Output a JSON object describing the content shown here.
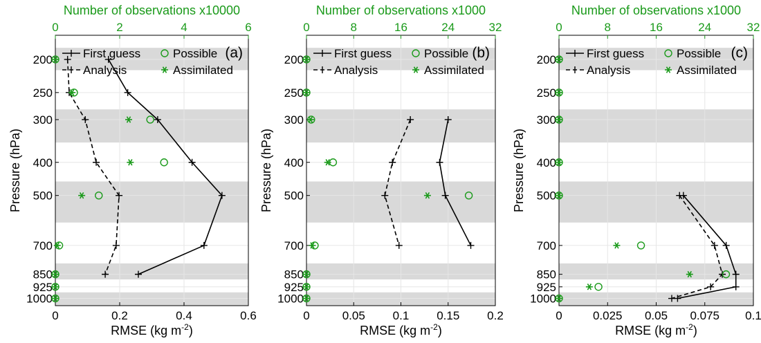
{
  "chart_data": [
    {
      "type": "line",
      "panel_label": "(a)",
      "xlabel": "RMSE (kg m",
      "xlabel_sup": "-2",
      "xlabel_close": ")",
      "ylabel": "Pressure (hPa)",
      "x2label": "Number of observations x10000",
      "xlim": [
        0,
        0.6
      ],
      "x2lim": [
        0,
        6
      ],
      "yscale": "log",
      "ylim_top": 170,
      "ylim_bottom": 1050,
      "xticks": [
        "0",
        "0.2",
        "0.4",
        "0.6"
      ],
      "xtick_values": [
        0,
        0.2,
        0.4,
        0.6
      ],
      "x2ticks": [
        "0",
        "2",
        "4",
        "6"
      ],
      "x2tick_values": [
        0,
        2,
        4,
        6
      ],
      "yticks": [
        "200",
        "250",
        "300",
        "400",
        "500",
        "700",
        "850",
        "925",
        "1000"
      ],
      "ytick_values": [
        200,
        250,
        300,
        400,
        500,
        700,
        850,
        925,
        1000
      ],
      "grid": true,
      "pressure": [
        200,
        250,
        300,
        400,
        500,
        700,
        850
      ],
      "series": [
        {
          "name": "First guess",
          "style": "solid",
          "axis": "bottom",
          "values": [
            0.165,
            0.225,
            0.318,
            0.425,
            0.518,
            0.462,
            0.258
          ]
        },
        {
          "name": "Analysis",
          "style": "dashed",
          "axis": "bottom",
          "values": [
            0.038,
            0.043,
            0.093,
            0.127,
            0.198,
            0.189,
            0.155
          ]
        }
      ],
      "observations": {
        "pressure": [
          200,
          250,
          300,
          400,
          500,
          700,
          850,
          925,
          1000
        ],
        "possible": [
          0.0,
          0.58,
          2.95,
          3.38,
          1.35,
          0.12,
          0.0,
          0.0,
          0.0
        ],
        "assimilated": [
          0.0,
          0.52,
          2.28,
          2.33,
          0.82,
          0.06,
          0.0,
          0.0,
          0.0
        ]
      },
      "legend": [
        "First guess",
        "Possible",
        "Analysis",
        "Assimilated"
      ]
    },
    {
      "type": "line",
      "panel_label": "(b)",
      "xlabel": "RMSE (kg m",
      "xlabel_sup": "-2",
      "xlabel_close": ")",
      "ylabel": "Pressure (hPa)",
      "x2label": "Number of observations x1000",
      "xlim": [
        0,
        0.2
      ],
      "x2lim": [
        0,
        32
      ],
      "yscale": "log",
      "ylim_top": 170,
      "ylim_bottom": 1050,
      "xticks": [
        "0",
        "0.05",
        "0.1",
        "0.15",
        "0.2"
      ],
      "xtick_values": [
        0,
        0.05,
        0.1,
        0.15,
        0.2
      ],
      "x2ticks": [
        "0",
        "8",
        "16",
        "24",
        "32"
      ],
      "x2tick_values": [
        0,
        8,
        16,
        24,
        32
      ],
      "yticks": [
        "200",
        "250",
        "300",
        "400",
        "500",
        "700",
        "850",
        "925",
        "1000"
      ],
      "ytick_values": [
        200,
        250,
        300,
        400,
        500,
        700,
        850,
        925,
        1000
      ],
      "grid": true,
      "pressure": [
        300,
        400,
        500,
        700
      ],
      "series": [
        {
          "name": "First guess",
          "style": "solid",
          "axis": "bottom",
          "values": [
            0.15,
            0.141,
            0.147,
            0.174
          ]
        },
        {
          "name": "Analysis",
          "style": "dashed",
          "axis": "bottom",
          "values": [
            0.11,
            0.091,
            0.083,
            0.098
          ]
        }
      ],
      "observations": {
        "pressure": [
          200,
          250,
          300,
          400,
          500,
          700,
          850,
          925,
          1000
        ],
        "possible": [
          0.0,
          0.0,
          0.8,
          4.5,
          27.5,
          1.4,
          0.0,
          0.0,
          0.0
        ],
        "assimilated": [
          0.0,
          0.0,
          0.7,
          3.6,
          20.5,
          1.0,
          0.0,
          0.0,
          0.0
        ]
      },
      "legend": [
        "First guess",
        "Possible",
        "Analysis",
        "Assimilated"
      ]
    },
    {
      "type": "line",
      "panel_label": "(c)",
      "xlabel": "RMSE (kg m",
      "xlabel_sup": "-2",
      "xlabel_close": ")",
      "ylabel": "Pressure (hPa)",
      "x2label": "Number of observations x1000",
      "xlim": [
        0,
        0.1
      ],
      "x2lim": [
        0,
        32
      ],
      "yscale": "log",
      "ylim_top": 170,
      "ylim_bottom": 1050,
      "xticks": [
        "0",
        "0.025",
        "0.05",
        "0.075",
        "0.1"
      ],
      "xtick_values": [
        0,
        0.025,
        0.05,
        0.075,
        0.1
      ],
      "x2ticks": [
        "0",
        "8",
        "16",
        "24",
        "32"
      ],
      "x2tick_values": [
        0,
        8,
        16,
        24,
        32
      ],
      "yticks": [
        "200",
        "250",
        "300",
        "400",
        "500",
        "700",
        "850",
        "925",
        "1000"
      ],
      "ytick_values": [
        200,
        250,
        300,
        400,
        500,
        700,
        850,
        925,
        1000
      ],
      "grid": true,
      "pressure": [
        500,
        700,
        850,
        925,
        1000
      ],
      "series": [
        {
          "name": "First guess",
          "style": "solid",
          "axis": "bottom",
          "values": [
            0.064,
            0.086,
            0.091,
            0.091,
            0.061
          ]
        },
        {
          "name": "Analysis",
          "style": "dashed",
          "axis": "bottom",
          "values": [
            0.062,
            0.08,
            0.084,
            0.078,
            0.058
          ]
        }
      ],
      "observations": {
        "pressure": [
          200,
          250,
          300,
          400,
          500,
          700,
          850,
          925,
          1000
        ],
        "possible": [
          0.0,
          0.0,
          0.0,
          0.0,
          0.0,
          13.5,
          27.5,
          6.5,
          0.0
        ],
        "assimilated": [
          0.0,
          0.0,
          0.0,
          0.0,
          0.0,
          9.5,
          21.5,
          5.0,
          0.0
        ]
      },
      "legend": [
        "First guess",
        "Possible",
        "Analysis",
        "Assimilated"
      ]
    }
  ],
  "styles": {
    "line_color": "#000000",
    "obs_color": "#1a9a1a",
    "band_color": "#d9d9d9",
    "grid_color": "#e6e6e6"
  }
}
